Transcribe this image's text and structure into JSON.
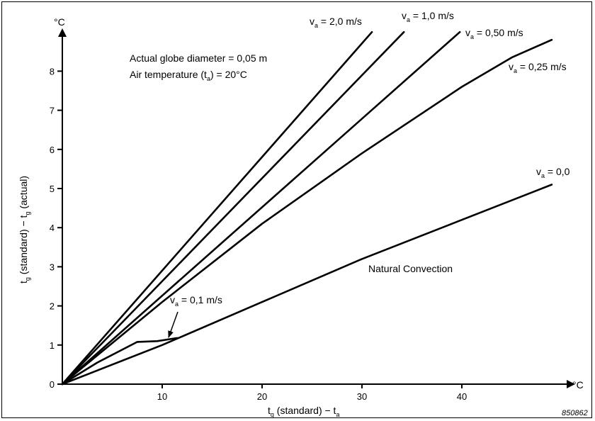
{
  "chart_data": {
    "type": "line",
    "x_unit": "°C",
    "y_unit": "°C",
    "xlim": [
      0,
      50
    ],
    "ylim": [
      0,
      9
    ],
    "x_ticks": [
      10,
      20,
      30,
      40
    ],
    "y_ticks": [
      0,
      1,
      2,
      3,
      4,
      5,
      6,
      7,
      8
    ],
    "xlabel": {
      "main": "t",
      "sub": "g",
      "rest": " (standard) − t",
      "sub2": "a"
    },
    "ylabel": {
      "main": "t",
      "sub": "g",
      "rest": " (standard) − t",
      "sub2": "g",
      "rest2": " (actual)"
    },
    "annotation_diameter": "Actual globe diameter = 0,05 m",
    "annotation_temperature": {
      "before": "Air temperature (t",
      "sub": "a",
      "after": ") = 20°C"
    },
    "natural_convection_label": "Natural Convection",
    "figure_id": "850862",
    "series": [
      {
        "name": "2,0 m/s",
        "label": {
          "v": "v",
          "sub": "a",
          "text": " = 2,0 m/s"
        },
        "x": [
          0,
          31
        ],
        "y": [
          0,
          9.0
        ]
      },
      {
        "name": "1,0 m/s",
        "label": {
          "v": "v",
          "sub": "a",
          "text": " = 1,0 m/s"
        },
        "x": [
          0,
          34.2
        ],
        "y": [
          0,
          9.0
        ]
      },
      {
        "name": "0,50 m/s",
        "label": {
          "v": "v",
          "sub": "a",
          "text": " = 0,50 m/s"
        },
        "x": [
          0,
          39.8
        ],
        "y": [
          0,
          9.0
        ]
      },
      {
        "name": "0,25 m/s",
        "label": {
          "v": "v",
          "sub": "a",
          "text": " = 0,25 m/s"
        },
        "x": [
          0,
          10,
          20,
          30,
          40,
          45,
          49
        ],
        "y": [
          0,
          2.1,
          4.1,
          5.9,
          7.6,
          8.35,
          8.8
        ]
      },
      {
        "name": "0,0",
        "label": {
          "v": "v",
          "sub": "a",
          "text": " = 0,0"
        },
        "x": [
          0,
          10,
          20,
          30,
          40,
          49
        ],
        "y": [
          0,
          1.0,
          2.1,
          3.2,
          4.2,
          5.1
        ]
      },
      {
        "name": "0,1 m/s",
        "label": {
          "v": "v",
          "sub": "a",
          "text": " = 0,1 m/s"
        },
        "x": [
          0,
          3.5,
          7.5,
          9.5,
          11.5
        ],
        "y": [
          0,
          0.55,
          1.08,
          1.1,
          1.18
        ]
      }
    ]
  }
}
